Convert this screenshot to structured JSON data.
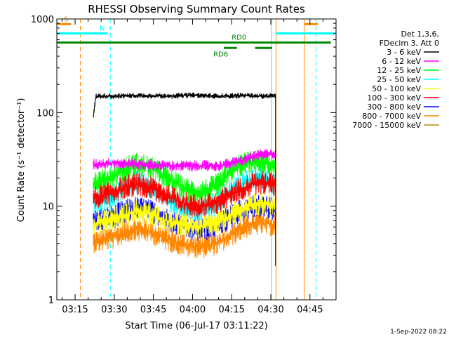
{
  "chart_data": {
    "type": "line",
    "title": "RHESSI Observing Summary Count Rates",
    "xlabel": "Start Time (06-Jul-17 03:11:22)",
    "ylabel": "Count Rate (s⁻¹ detector⁻¹)",
    "yscale": "log",
    "xlim_minutes": [
      188,
      295
    ],
    "ylim": [
      1,
      1000
    ],
    "x_ticks": [
      {
        "value": 195,
        "label": "03:15"
      },
      {
        "value": 210,
        "label": "03:30"
      },
      {
        "value": 225,
        "label": "03:45"
      },
      {
        "value": 240,
        "label": "04:00"
      },
      {
        "value": 255,
        "label": "04:15"
      },
      {
        "value": 270,
        "label": "04:30"
      },
      {
        "value": 285,
        "label": "04:45"
      }
    ],
    "y_ticks": [
      {
        "value": 1,
        "label": "1"
      },
      {
        "value": 10,
        "label": "10"
      },
      {
        "value": 100,
        "label": "100"
      },
      {
        "value": 1000,
        "label": "1000"
      }
    ],
    "legend": {
      "position": "right",
      "header": [
        "Det 1,3,6,",
        "FDecim 3, Att 0"
      ]
    },
    "series": [
      {
        "name": "3 - 6 keV",
        "color": "#000000",
        "x": [
          202,
          203,
          210,
          220,
          230,
          240,
          250,
          260,
          266,
          270,
          271.8
        ],
        "y": [
          90,
          150,
          150,
          152,
          150,
          153,
          150,
          152,
          150,
          150,
          150
        ]
      },
      {
        "name": "6 - 12 keV",
        "color": "#ff00ff",
        "x": [
          202,
          210,
          220,
          230,
          240,
          250,
          258,
          262,
          266,
          270,
          271.8
        ],
        "y": [
          28,
          29,
          28,
          27,
          27,
          27,
          30,
          33,
          35,
          37,
          36
        ]
      },
      {
        "name": "12 - 25 keV",
        "color": "#00ff00",
        "x": [
          202,
          206,
          210,
          214,
          218,
          222,
          226,
          230,
          234,
          238,
          242,
          246,
          250,
          254,
          258,
          262,
          266,
          270,
          271.8
        ],
        "y": [
          18,
          19,
          21,
          25,
          28,
          27,
          24,
          20,
          17,
          15,
          14,
          15,
          17,
          22,
          27,
          30,
          30,
          28,
          27
        ]
      },
      {
        "name": "25 - 50 keV",
        "color": "#00ffff",
        "x": [
          202,
          206,
          210,
          214,
          218,
          222,
          226,
          230,
          234,
          238,
          242,
          246,
          250,
          254,
          258,
          262,
          266,
          270,
          271.8
        ],
        "y": [
          11,
          12,
          13,
          16,
          18,
          17,
          15,
          12,
          10.5,
          9.5,
          9,
          9.5,
          11,
          14,
          17,
          19,
          20,
          19,
          18
        ]
      },
      {
        "name": "50 - 100 keV",
        "color": "#ffff00",
        "x": [
          202,
          206,
          210,
          214,
          218,
          222,
          226,
          230,
          234,
          238,
          242,
          246,
          250,
          254,
          258,
          262,
          266,
          270,
          271.8
        ],
        "y": [
          6.5,
          6.8,
          7.2,
          8,
          8.8,
          8.5,
          7.8,
          7,
          6.5,
          6.2,
          6,
          6.2,
          6.8,
          7.8,
          9,
          10,
          10.5,
          10.5,
          10
        ]
      },
      {
        "name": "100 - 300 keV",
        "color": "#ff0000",
        "x": [
          202,
          206,
          210,
          214,
          218,
          222,
          226,
          230,
          234,
          238,
          242,
          246,
          250,
          254,
          258,
          262,
          266,
          270,
          271.8
        ],
        "y": [
          12,
          13,
          14,
          16,
          17,
          16.5,
          15,
          13,
          11.5,
          10.5,
          10,
          10.2,
          11,
          13,
          15,
          17,
          18,
          17.5,
          17
        ]
      },
      {
        "name": "300 - 800 keV",
        "color": "#0000ff",
        "x": [
          202,
          206,
          210,
          214,
          218,
          222,
          226,
          230,
          234,
          238,
          242,
          246,
          250,
          254,
          258,
          262,
          266,
          270,
          271.8
        ],
        "y": [
          7,
          7.3,
          7.8,
          8.8,
          9.5,
          9.2,
          8.2,
          7.2,
          6.4,
          5.9,
          5.6,
          5.8,
          6.4,
          7.5,
          8.8,
          9.8,
          10,
          9.5,
          9
        ]
      },
      {
        "name": "800 - 7000 keV",
        "color": "#ff8800",
        "x": [
          202,
          206,
          210,
          214,
          218,
          222,
          226,
          230,
          234,
          238,
          242,
          246,
          250,
          254,
          258,
          262,
          266,
          270,
          271.8
        ],
        "y": [
          4.2,
          4.4,
          4.7,
          5.3,
          5.7,
          5.5,
          5,
          4.5,
          4.1,
          3.8,
          3.7,
          3.8,
          4.1,
          4.8,
          5.6,
          6.3,
          6.6,
          6.4,
          6.2
        ]
      },
      {
        "name": "7000 - 15000 keV",
        "color": "#b8860b",
        "x": [],
        "y": []
      }
    ],
    "annotations": [
      {
        "label": "S",
        "color": "#ff8800",
        "x": [
          188,
          193.5
        ],
        "y": 880
      },
      {
        "label": "N",
        "color": "#00ffff",
        "x": [
          188,
          207.5
        ],
        "y": 700
      },
      {
        "label": "RD0",
        "color": "#008800",
        "x": [
          188,
          293
        ],
        "y": 560
      },
      {
        "label": "RD6",
        "color": "#008800",
        "x": [
          252,
          257
        ],
        "y": 490
      }
    ],
    "extra_bars": [
      {
        "color": "#00ffff",
        "x": [
          272,
          295
        ],
        "y": 700
      },
      {
        "color": "#ff8800",
        "x": [
          283,
          288
        ],
        "y": 880
      },
      {
        "color": "#008800",
        "x": [
          264,
          270.5
        ],
        "y": 490
      }
    ],
    "vlines": [
      {
        "x": 188,
        "color": "#00ffff",
        "style": "solid"
      },
      {
        "x": 197,
        "color": "#ff8800",
        "style": "dashed"
      },
      {
        "x": 208.5,
        "color": "#00ffff",
        "style": "dashed"
      },
      {
        "x": 270.3,
        "color": "#00ffff",
        "style": "solid"
      },
      {
        "x": 272,
        "color": "#ff8800",
        "style": "solid"
      },
      {
        "x": 282.8,
        "color": "#ff8800",
        "style": "solid"
      },
      {
        "x": 287.3,
        "color": "#00ffff",
        "style": "dashed"
      }
    ]
  },
  "footer": {
    "date": "1-Sep-2022 08:22"
  }
}
